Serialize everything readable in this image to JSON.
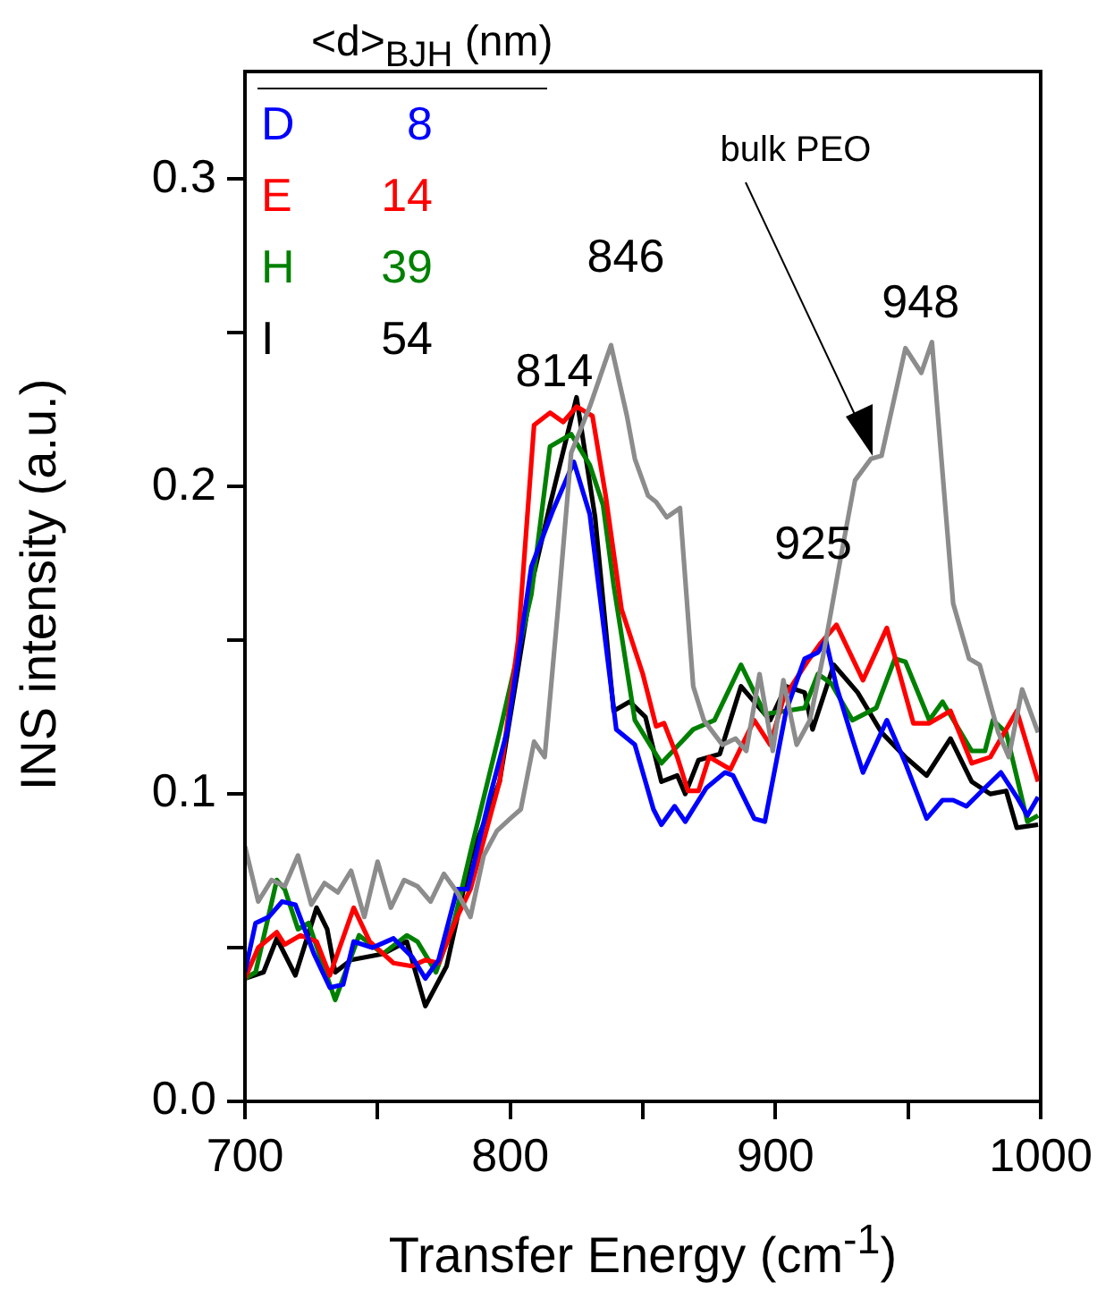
{
  "chart_data": {
    "type": "line",
    "xlabel": "Transfer Energy (cm$^{-1}$)",
    "ylabel": "INS intensity (a.u.)",
    "legend_title": "<d>$_{BJH}$ (nm)",
    "xlim": [
      700,
      1000
    ],
    "ylim": [
      0,
      0.335
    ],
    "xticks": [
      700,
      {
        "value": 750,
        "label": null
      },
      800,
      {
        "value": 850,
        "label": null
      },
      900,
      {
        "value": 950,
        "label": null
      },
      1000
    ],
    "yticks": [
      {
        "value": 0,
        "label": "0.0"
      },
      {
        "value": 0.05,
        "label": null
      },
      {
        "value": 0.1,
        "label": "0.1"
      },
      {
        "value": 0.15,
        "label": null
      },
      {
        "value": 0.2,
        "label": "0.2"
      },
      {
        "value": 0.25,
        "label": null
      },
      {
        "value": 0.3,
        "label": "0.3"
      }
    ],
    "grid": false,
    "marker": "none",
    "line_style": "solid",
    "annotations": [
      "814",
      "846",
      "bulk PEO",
      {
        "text": "925",
        "x": 925,
        "y": 0.155
      },
      {
        "text": "948",
        "x": 948,
        "y": 0.247
      }
    ],
    "series": [
      {
        "color": "#8c8c8c",
        "x": [
          700,
          705,
          710,
          715,
          720,
          725,
          730,
          735,
          740,
          745,
          750,
          755,
          760,
          765,
          770,
          775,
          780,
          785,
          790,
          795,
          800,
          804,
          809,
          813,
          818,
          823,
          830,
          838,
          844,
          847,
          852,
          855,
          859,
          864,
          869,
          873,
          880,
          885,
          889,
          894,
          899,
          903,
          908,
          913,
          918,
          924,
          930,
          936,
          940,
          949,
          955,
          959,
          967,
          973,
          977,
          984,
          988,
          993,
          999
        ],
        "values": [
          0.083,
          0.065,
          0.072,
          0.07,
          0.08,
          0.064,
          0.071,
          0.068,
          0.075,
          0.06,
          0.078,
          0.063,
          0.072,
          0.07,
          0.065,
          0.074,
          0.068,
          0.06,
          0.08,
          0.088,
          0.092,
          0.095,
          0.117,
          0.112,
          0.16,
          0.211,
          0.226,
          0.246,
          0.223,
          0.209,
          0.197,
          0.195,
          0.19,
          0.193,
          0.135,
          0.124,
          0.116,
          0.118,
          0.114,
          0.139,
          0.114,
          0.137,
          0.116,
          0.124,
          0.145,
          0.174,
          0.202,
          0.209,
          0.21,
          0.245,
          0.237,
          0.247,
          0.162,
          0.144,
          0.142,
          0.12,
          0.112,
          0.134,
          0.12
        ]
      },
      {
        "name": "D 8",
        "color": "#0000ff",
        "x": [
          700,
          704,
          709,
          714,
          719,
          726,
          732,
          737,
          741,
          748,
          756,
          763,
          768,
          773,
          780,
          784,
          792,
          799,
          808,
          816,
          824,
          830,
          836,
          840,
          847,
          854,
          857,
          862,
          866,
          874,
          881,
          884,
          892,
          896,
          904,
          911,
          916,
          919,
          923,
          929,
          933,
          942,
          949,
          957,
          963,
          967,
          972,
          979,
          985,
          991,
          995,
          999
        ],
        "values": [
          0.042,
          0.058,
          0.06,
          0.065,
          0.064,
          0.048,
          0.037,
          0.038,
          0.052,
          0.05,
          0.053,
          0.047,
          0.04,
          0.046,
          0.069,
          0.069,
          0.098,
          0.121,
          0.174,
          0.192,
          0.208,
          0.191,
          0.149,
          0.121,
          0.116,
          0.095,
          0.09,
          0.096,
          0.091,
          0.102,
          0.107,
          0.106,
          0.092,
          0.091,
          0.127,
          0.144,
          0.146,
          0.15,
          0.135,
          0.118,
          0.107,
          0.124,
          0.11,
          0.092,
          0.098,
          0.098,
          0.096,
          0.102,
          0.107,
          0.099,
          0.093,
          0.099
        ]
      },
      {
        "name": "E 14",
        "color": "#ff0000",
        "x": [
          700,
          705,
          712,
          715,
          721,
          727,
          732,
          741,
          747,
          756,
          763,
          768,
          773,
          780,
          785,
          796,
          803,
          809,
          815,
          820,
          825,
          831,
          836,
          842,
          850,
          855,
          858,
          863,
          867,
          871,
          875,
          883,
          892,
          898,
          903,
          912,
          917,
          923,
          933,
          942,
          952,
          958,
          966,
          974,
          981,
          991,
          999
        ],
        "values": [
          0.04,
          0.05,
          0.055,
          0.051,
          0.054,
          0.052,
          0.041,
          0.063,
          0.052,
          0.045,
          0.044,
          0.046,
          0.045,
          0.06,
          0.069,
          0.104,
          0.15,
          0.22,
          0.224,
          0.221,
          0.226,
          0.223,
          0.197,
          0.16,
          0.139,
          0.122,
          0.123,
          0.112,
          0.101,
          0.101,
          0.112,
          0.108,
          0.124,
          0.116,
          0.131,
          0.143,
          0.149,
          0.155,
          0.137,
          0.154,
          0.123,
          0.123,
          0.127,
          0.11,
          0.112,
          0.127,
          0.104
        ]
      },
      {
        "name": "H 39",
        "color": "#008000",
        "x": [
          700,
          704,
          712,
          715,
          720,
          724,
          734,
          743,
          752,
          761,
          765,
          772,
          779,
          785,
          796,
          808,
          815,
          823,
          830,
          835,
          839,
          847,
          857,
          869,
          877,
          887,
          896,
          904,
          911,
          916,
          921,
          929,
          938,
          945,
          949,
          958,
          963,
          974,
          979,
          982,
          987,
          995,
          999
        ],
        "values": [
          0.04,
          0.042,
          0.072,
          0.069,
          0.056,
          0.058,
          0.033,
          0.054,
          0.048,
          0.054,
          0.052,
          0.042,
          0.059,
          0.081,
          0.12,
          0.165,
          0.213,
          0.217,
          0.207,
          0.194,
          0.168,
          0.124,
          0.11,
          0.121,
          0.124,
          0.142,
          0.126,
          0.127,
          0.128,
          0.139,
          0.136,
          0.124,
          0.128,
          0.144,
          0.143,
          0.124,
          0.13,
          0.114,
          0.114,
          0.124,
          0.12,
          0.091,
          0.093
        ]
      },
      {
        "name": "I 54",
        "color": "#000000",
        "x": [
          700,
          707,
          712,
          719,
          727,
          731,
          734,
          740,
          752,
          761,
          768,
          776,
          785,
          796,
          803,
          808,
          815,
          825,
          832,
          839,
          845,
          851,
          857,
          863,
          866,
          871,
          879,
          887,
          898,
          904,
          911,
          914,
          922,
          931,
          940,
          949,
          957,
          966,
          974,
          981,
          987,
          991,
          999
        ],
        "values": [
          0.04,
          0.042,
          0.053,
          0.041,
          0.063,
          0.056,
          0.042,
          0.046,
          0.048,
          0.052,
          0.031,
          0.044,
          0.079,
          0.104,
          0.141,
          0.168,
          0.194,
          0.229,
          0.19,
          0.127,
          0.13,
          0.125,
          0.104,
          0.106,
          0.1,
          0.111,
          0.113,
          0.135,
          0.124,
          0.135,
          0.133,
          0.121,
          0.142,
          0.133,
          0.12,
          0.112,
          0.106,
          0.118,
          0.104,
          0.1,
          0.101,
          0.089,
          0.09
        ]
      }
    ]
  }
}
